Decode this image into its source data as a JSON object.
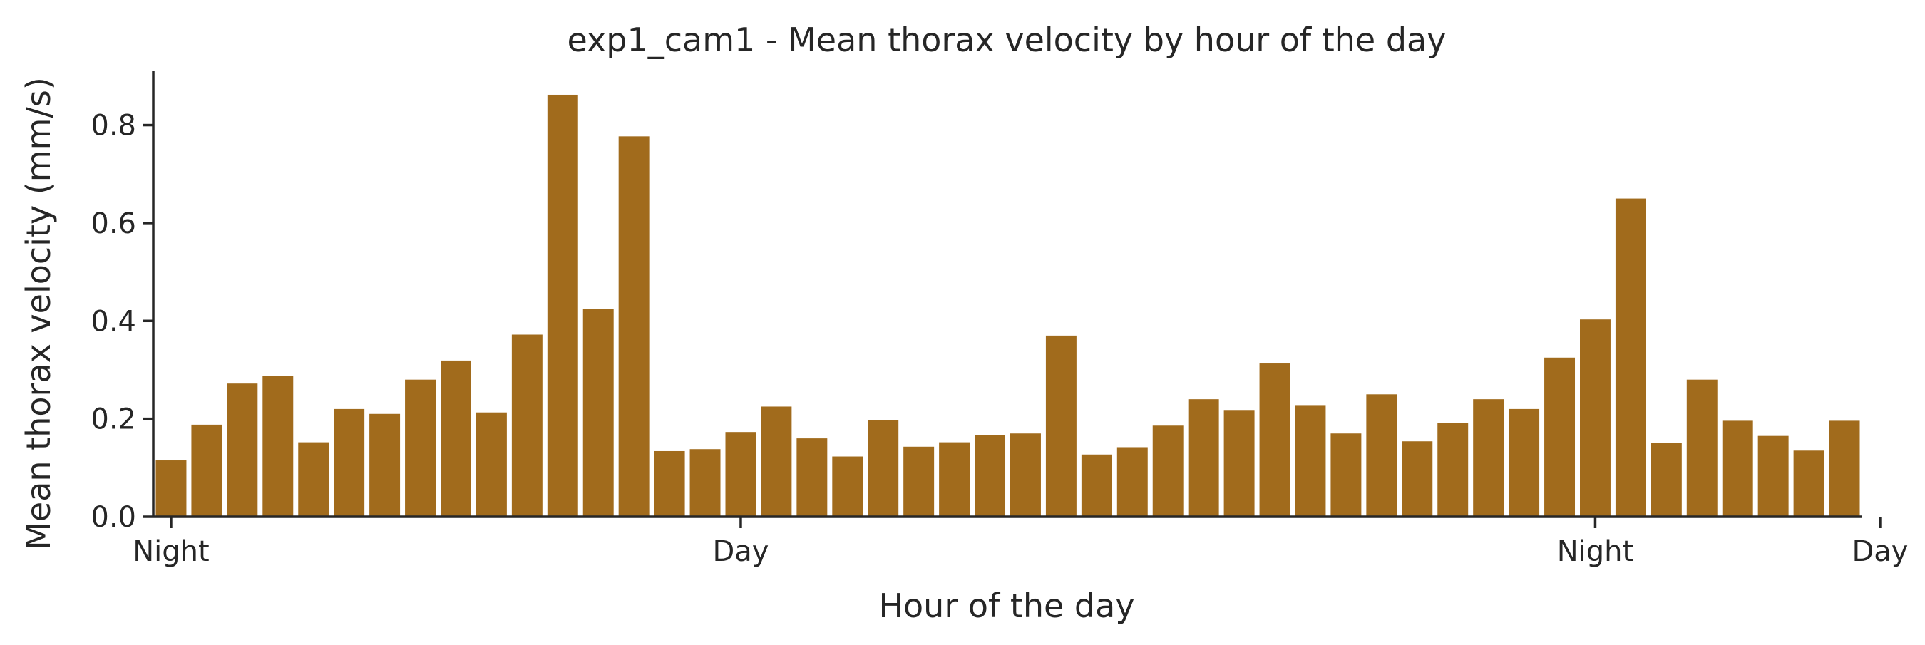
{
  "chart_data": {
    "type": "bar",
    "title": "exp1_cam1 - Mean thorax velocity by hour of the day",
    "xlabel": "Hour of the day",
    "ylabel": "Mean thorax velocity (mm/s)",
    "ylim": [
      0,
      0.91
    ],
    "xlim": [
      -0.5,
      47.5
    ],
    "y_ticks": [
      "0.0",
      "0.2",
      "0.4",
      "0.6",
      "0.8"
    ],
    "x_ticks": [
      {
        "x": 0,
        "label": "Night"
      },
      {
        "x": 16,
        "label": "Day"
      },
      {
        "x": 40,
        "label": "Night"
      },
      {
        "x": 48,
        "label": "Day"
      }
    ],
    "grid": false,
    "bar_color": "#a16b1c",
    "values": [
      0.115,
      0.188,
      0.272,
      0.287,
      0.152,
      0.22,
      0.21,
      0.28,
      0.319,
      0.213,
      0.372,
      0.862,
      0.424,
      0.777,
      0.134,
      0.138,
      0.173,
      0.225,
      0.16,
      0.123,
      0.198,
      0.143,
      0.152,
      0.166,
      0.17,
      0.37,
      0.127,
      0.142,
      0.186,
      0.24,
      0.218,
      0.313,
      0.228,
      0.17,
      0.25,
      0.154,
      0.191,
      0.24,
      0.22,
      0.325,
      0.403,
      0.65,
      0.151,
      0.28,
      0.196,
      0.165,
      0.135,
      0.196
    ]
  }
}
